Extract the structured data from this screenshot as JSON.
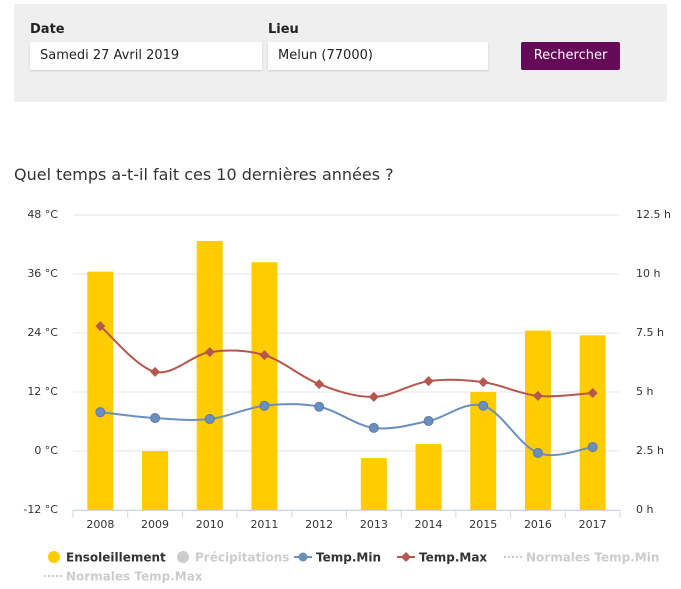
{
  "form": {
    "date_label": "Date",
    "date_value": "Samedi 27 Avril 2019",
    "place_label": "Lieu",
    "place_value": "Melun (77000)",
    "button": "Rechercher"
  },
  "chart_data": {
    "type": "combo",
    "title": "Quel temps a-t-il fait ces 10 dernières années ?",
    "categories": [
      "2008",
      "2009",
      "2010",
      "2011",
      "2012",
      "2013",
      "2014",
      "2015",
      "2016",
      "2017"
    ],
    "ylim": [
      -12,
      48
    ],
    "yticks": [
      {
        "value": -12,
        "label": "-12 °C"
      },
      {
        "value": 0,
        "label": "0 °C"
      },
      {
        "value": 12,
        "label": "12 °C"
      },
      {
        "value": 24,
        "label": "24 °C"
      },
      {
        "value": 36,
        "label": "36 °C"
      },
      {
        "value": 48,
        "label": "48 °C"
      }
    ],
    "y2lim": [
      0,
      12.5
    ],
    "y2ticks": [
      {
        "value": 0,
        "label": "0 h"
      },
      {
        "value": 2.5,
        "label": "2.5 h"
      },
      {
        "value": 5,
        "label": "5 h"
      },
      {
        "value": 7.5,
        "label": "7.5 h"
      },
      {
        "value": 10,
        "label": "10 h"
      },
      {
        "value": 12.5,
        "label": "12.5 h"
      }
    ],
    "grid": true,
    "series": [
      {
        "name": "Ensoleillement",
        "type": "bar",
        "axis": "y2",
        "color": "#ffcc00",
        "values": [
          10.1,
          2.5,
          11.4,
          10.5,
          null,
          2.2,
          2.8,
          5.0,
          7.6,
          7.4
        ]
      },
      {
        "name": "Temp.Min",
        "type": "line",
        "marker": "circle",
        "color": "#6b8fbd",
        "values": [
          7.9,
          6.7,
          6.5,
          9.2,
          9.0,
          4.7,
          6.1,
          9.2,
          -0.4,
          0.8
        ]
      },
      {
        "name": "Temp.Max",
        "type": "line",
        "marker": "diamond",
        "color": "#b5574c",
        "values": [
          25.4,
          16.1,
          20.1,
          19.5,
          13.6,
          11.0,
          14.2,
          14.0,
          11.2,
          11.8
        ]
      }
    ],
    "legend": [
      {
        "name": "Ensoleillement",
        "symbol": "circle",
        "color": "#ffcc00",
        "active": true
      },
      {
        "name": "Précipitations",
        "symbol": "circle",
        "color": "#cccccc",
        "active": false
      },
      {
        "name": "Temp.Min",
        "symbol": "line-circle",
        "color": "#6b8fbd",
        "active": true
      },
      {
        "name": "Temp.Max",
        "symbol": "line-diamond",
        "color": "#b5574c",
        "active": true
      },
      {
        "name": "Normales Temp.Min",
        "symbol": "dotted",
        "color": "#cccccc",
        "active": false
      },
      {
        "name": "Normales Temp.Max",
        "symbol": "dotted",
        "color": "#cccccc",
        "active": false
      }
    ]
  }
}
